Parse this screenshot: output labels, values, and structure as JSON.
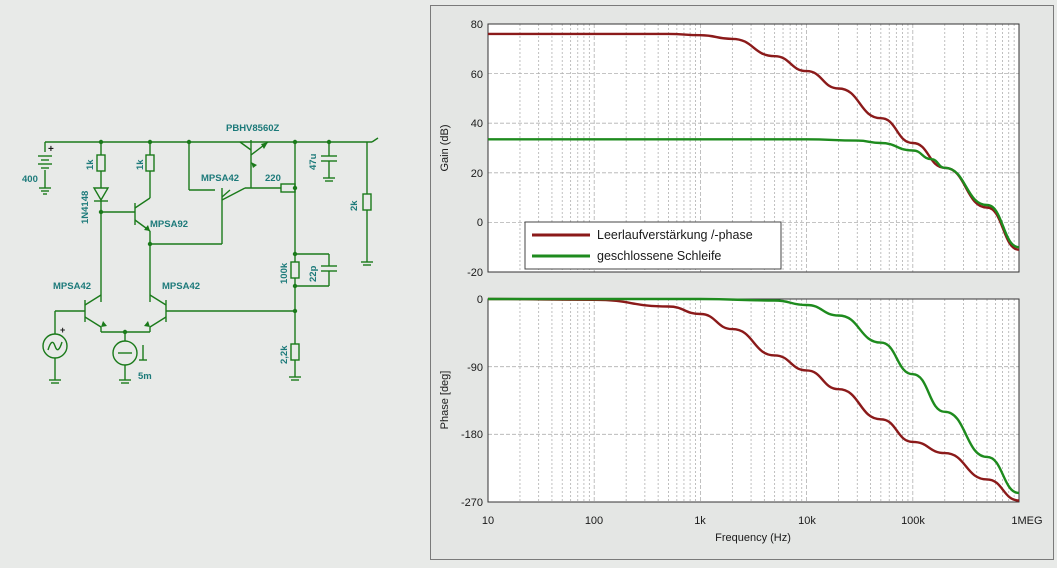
{
  "colors": {
    "wire": "#1a7a1a",
    "label": "#1c7a7a",
    "battery_label": "#1c7a7a",
    "open_loop": "#8b1a1a",
    "closed_loop": "#1e8b1e",
    "grid": "#b0b0b0",
    "plot_bg": "#ffffff",
    "panel_bg": "#e4e6e4",
    "page_bg": "#e8eae8"
  },
  "schematic": {
    "battery_label": "400",
    "r1": "1k",
    "d1": "1N4148",
    "r2": "1k",
    "q_pnp": "MPSA92",
    "q_mid": "MPSA42",
    "q_out": "PBHV8560Z",
    "r_base": "220",
    "c_out": "47u",
    "r_load": "2k",
    "r_fb": "100k",
    "c_fb": "22p",
    "r_gnd": "2,2k",
    "q_left": "MPSA42",
    "q_right": "MPSA42",
    "isrc": "5m"
  },
  "legend": {
    "open_loop": "Leerlaufverstärkung /-phase",
    "closed_loop": "geschlossene Schleife"
  },
  "gain_plot": {
    "ylabel": "Gain (dB)",
    "yticks": [
      "80",
      "60",
      "40",
      "20",
      "0",
      "-20"
    ]
  },
  "phase_plot": {
    "ylabel": "Phase [deg]",
    "yticks": [
      "0",
      "-90",
      "-180",
      "-270"
    ]
  },
  "xaxis": {
    "label": "Frequency (Hz)",
    "ticks": [
      "10",
      "100",
      "1k",
      "10k",
      "100k",
      "1MEG"
    ]
  },
  "chart_data": [
    {
      "type": "line",
      "xscale": "log",
      "xlim": [
        10,
        1000000
      ],
      "ylim": [
        -20,
        80
      ],
      "xlabel": "Frequency (Hz)",
      "ylabel": "Gain (dB)",
      "grid": true,
      "legend_position": "bottom-left",
      "series": [
        {
          "name": "Leerlaufverstärkung /-phase",
          "x": [
            10,
            100,
            500,
            1000,
            2000,
            5000,
            10000,
            20000,
            50000,
            100000,
            200000,
            500000,
            1000000
          ],
          "y": [
            76,
            76,
            76,
            75.5,
            74,
            67,
            61,
            54,
            42,
            32,
            22,
            6,
            -11
          ]
        },
        {
          "name": "geschlossene Schleife",
          "x": [
            10,
            100,
            1000,
            10000,
            30000,
            50000,
            100000,
            150000,
            200000,
            500000,
            1000000
          ],
          "y": [
            33.5,
            33.5,
            33.5,
            33.5,
            33,
            32,
            29,
            25.5,
            22,
            7,
            -10
          ]
        }
      ]
    },
    {
      "type": "line",
      "xscale": "log",
      "xlim": [
        10,
        1000000
      ],
      "ylim": [
        -270,
        0
      ],
      "xlabel": "Frequency (Hz)",
      "ylabel": "Phase [deg]",
      "grid": true,
      "series": [
        {
          "name": "Leerlaufverstärkung /-phase",
          "x": [
            10,
            100,
            500,
            1000,
            2000,
            5000,
            10000,
            20000,
            50000,
            100000,
            200000,
            500000,
            1000000
          ],
          "y": [
            0,
            -1,
            -10,
            -20,
            -40,
            -75,
            -95,
            -120,
            -160,
            -190,
            -205,
            -240,
            -268
          ]
        },
        {
          "name": "geschlossene Schleife",
          "x": [
            10,
            100,
            1000,
            5000,
            10000,
            20000,
            50000,
            100000,
            200000,
            500000,
            1000000
          ],
          "y": [
            0,
            0,
            0,
            -2,
            -8,
            -22,
            -58,
            -100,
            -150,
            -210,
            -258
          ]
        }
      ]
    }
  ]
}
